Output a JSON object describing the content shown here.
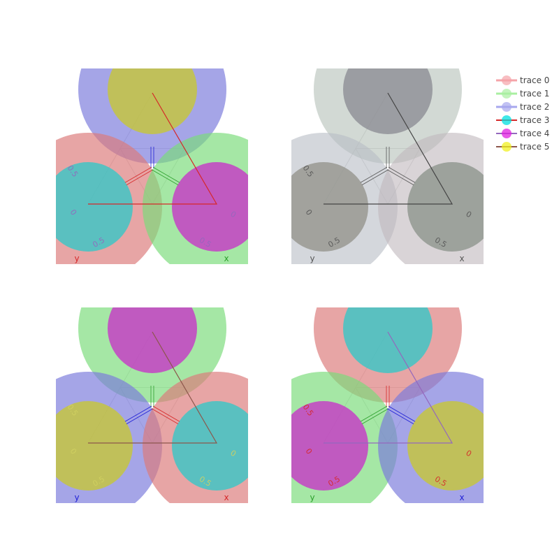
{
  "chart_data": {
    "type": "ternary",
    "subplot_count": 4,
    "axis_tick_values": [
      0,
      0.5
    ],
    "axes": [
      "a",
      "b",
      "c"
    ],
    "legend": {
      "placement": "top-right",
      "entries": [
        {
          "name": "trace 0",
          "color": "#f5a3a8",
          "style": "thick-line-marker"
        },
        {
          "name": "trace 1",
          "color": "#a9efa1",
          "style": "thick-line-marker"
        },
        {
          "name": "trace 2",
          "color": "#a7a7ee",
          "style": "thick-line-marker"
        },
        {
          "name": "trace 3",
          "color": "#00e0e0",
          "style": "line-marker",
          "line_color": "#d62728"
        },
        {
          "name": "trace 4",
          "color": "#e020e0",
          "style": "line-marker",
          "line_color": "#9467bd"
        },
        {
          "name": "trace 5",
          "color": "#f0f020",
          "style": "line-marker",
          "line_color": "#8c564b"
        }
      ]
    },
    "subplots": [
      {
        "id": "top-left",
        "axis_labels": {
          "b": "y",
          "c": "x"
        },
        "axis_colors": {
          "b": "#d62728",
          "c": "#2ca02c"
        },
        "tick_color": "#9467bd",
        "big_markers": [
          {
            "corner": "a",
            "color": "#7b7bdc",
            "opacity": 0.68
          },
          {
            "corner": "b",
            "color": "#dc7b7b",
            "opacity": 0.68
          },
          {
            "corner": "c",
            "color": "#7bdc7b",
            "opacity": 0.68
          }
        ],
        "small_markers": [
          {
            "corner": "a",
            "color": "#c8c832"
          },
          {
            "corner": "b",
            "color": "#32c8c8"
          },
          {
            "corner": "c",
            "color": "#c832c8"
          }
        ],
        "line_color": "#d62728",
        "center_lines": [
          "#1f1fd6",
          "#d62728",
          "#2ca02c"
        ]
      },
      {
        "id": "top-right",
        "axis_labels": {
          "b": "y",
          "c": "x"
        },
        "axis_colors": {
          "b": "#555555",
          "c": "#555555"
        },
        "tick_color": "#555555",
        "big_markers": [
          {
            "corner": "a",
            "color": "#b4c0b8",
            "opacity": 0.6
          },
          {
            "corner": "b",
            "color": "#b8bcc4",
            "opacity": 0.6
          },
          {
            "corner": "c",
            "color": "#c0b8bc",
            "opacity": 0.6
          }
        ],
        "small_markers": [
          {
            "corner": "a",
            "color": "#8c8c94"
          },
          {
            "corner": "b",
            "color": "#94948c"
          },
          {
            "corner": "c",
            "color": "#8c948c"
          }
        ],
        "line_color": "#444444",
        "center_lines": [
          "#555555",
          "#555555",
          "#555555"
        ]
      },
      {
        "id": "bottom-left",
        "axis_labels": {
          "b": "y",
          "c": "x"
        },
        "axis_colors": {
          "b": "#1f1fd6",
          "c": "#d62728"
        },
        "tick_color": "#d0d060",
        "big_markers": [
          {
            "corner": "a",
            "color": "#7bdc7b",
            "opacity": 0.68
          },
          {
            "corner": "b",
            "color": "#7b7bdc",
            "opacity": 0.68
          },
          {
            "corner": "c",
            "color": "#dc7b7b",
            "opacity": 0.68
          }
        ],
        "small_markers": [
          {
            "corner": "a",
            "color": "#c832c8"
          },
          {
            "corner": "b",
            "color": "#c8c832"
          },
          {
            "corner": "c",
            "color": "#32c8c8"
          }
        ],
        "line_color": "#8c564b",
        "center_lines": [
          "#2ca02c",
          "#1f1fd6",
          "#d62728"
        ]
      },
      {
        "id": "bottom-right",
        "axis_labels": {
          "b": "y",
          "c": "x"
        },
        "axis_colors": {
          "b": "#2ca02c",
          "c": "#1f1fd6"
        },
        "tick_color": "#d62728",
        "big_markers": [
          {
            "corner": "a",
            "color": "#dc7b7b",
            "opacity": 0.68
          },
          {
            "corner": "b",
            "color": "#7bdc7b",
            "opacity": 0.68
          },
          {
            "corner": "c",
            "color": "#7b7bdc",
            "opacity": 0.68
          }
        ],
        "small_markers": [
          {
            "corner": "a",
            "color": "#32c8c8"
          },
          {
            "corner": "b",
            "color": "#c832c8"
          },
          {
            "corner": "c",
            "color": "#c8c832"
          }
        ],
        "line_color": "#9467bd",
        "center_lines": [
          "#d62728",
          "#2ca02c",
          "#1f1fd6"
        ]
      }
    ]
  }
}
